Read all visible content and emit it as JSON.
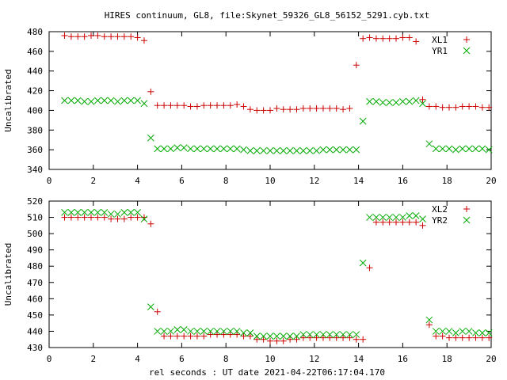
{
  "title": "HIRES continuum, GL8, file:Skynet_59326_GL8_56152_5291.cyb.txt",
  "xlabel": "rel seconds : UT date 2021-04-22T06:17:04.170",
  "chart_data": [
    {
      "type": "scatter",
      "ylabel": "Uncalibrated",
      "xlim": [
        0,
        20
      ],
      "ylim": [
        340,
        480
      ],
      "xticks": [
        0,
        2,
        4,
        6,
        8,
        10,
        12,
        14,
        16,
        18,
        20
      ],
      "yticks": [
        340,
        360,
        380,
        400,
        420,
        440,
        460,
        480
      ],
      "legend_position": "top-right",
      "series": [
        {
          "name": "XL1",
          "marker": "plus",
          "color": "#cc0000",
          "x": [
            0.7,
            1.0,
            1.3,
            1.6,
            1.9,
            2.2,
            2.5,
            2.8,
            3.1,
            3.4,
            3.7,
            4.0,
            4.3,
            4.6,
            4.9,
            5.2,
            5.5,
            5.8,
            6.1,
            6.4,
            6.7,
            7.0,
            7.3,
            7.6,
            7.9,
            8.2,
            8.5,
            8.8,
            9.1,
            9.4,
            9.7,
            10.0,
            10.3,
            10.6,
            10.9,
            11.2,
            11.5,
            11.8,
            12.1,
            12.4,
            12.7,
            13.0,
            13.3,
            13.6,
            13.9,
            14.2,
            14.5,
            14.8,
            15.1,
            15.4,
            15.7,
            16.0,
            16.3,
            16.6,
            16.9,
            17.2,
            17.5,
            17.8,
            18.1,
            18.4,
            18.7,
            19.0,
            19.3,
            19.6,
            19.9
          ],
          "y": [
            476,
            475,
            475,
            475,
            476,
            476,
            475,
            475,
            475,
            475,
            475,
            474,
            471,
            419,
            405,
            405,
            405,
            405,
            405,
            404,
            404,
            405,
            405,
            405,
            405,
            405,
            406,
            404,
            401,
            400,
            400,
            400,
            402,
            401,
            401,
            401,
            402,
            402,
            402,
            402,
            402,
            402,
            401,
            402,
            446,
            473,
            474,
            473,
            473,
            473,
            473,
            474,
            474,
            470,
            411,
            404,
            404,
            403,
            403,
            403,
            404,
            404,
            404,
            403,
            403
          ]
        },
        {
          "name": "YR1",
          "marker": "cross",
          "color": "#00aa00",
          "x": [
            0.7,
            1.0,
            1.3,
            1.6,
            1.9,
            2.2,
            2.5,
            2.8,
            3.1,
            3.4,
            3.7,
            4.0,
            4.3,
            4.6,
            4.9,
            5.2,
            5.5,
            5.8,
            6.1,
            6.4,
            6.7,
            7.0,
            7.3,
            7.6,
            7.9,
            8.2,
            8.5,
            8.8,
            9.1,
            9.4,
            9.7,
            10.0,
            10.3,
            10.6,
            10.9,
            11.2,
            11.5,
            11.8,
            12.1,
            12.4,
            12.7,
            13.0,
            13.3,
            13.6,
            13.9,
            14.2,
            14.5,
            14.8,
            15.1,
            15.4,
            15.7,
            16.0,
            16.3,
            16.6,
            16.9,
            17.2,
            17.5,
            17.8,
            18.1,
            18.4,
            18.7,
            19.0,
            19.3,
            19.6,
            19.9
          ],
          "y": [
            410,
            410,
            410,
            409,
            409,
            410,
            410,
            410,
            409,
            410,
            410,
            410,
            407,
            372,
            361,
            361,
            361,
            362,
            362,
            361,
            361,
            361,
            361,
            361,
            361,
            361,
            361,
            360,
            359,
            359,
            359,
            359,
            359,
            359,
            359,
            359,
            359,
            359,
            359,
            360,
            360,
            360,
            360,
            360,
            360,
            389,
            409,
            409,
            408,
            408,
            408,
            409,
            409,
            410,
            407,
            366,
            361,
            361,
            361,
            360,
            361,
            361,
            361,
            361,
            360
          ]
        }
      ]
    },
    {
      "type": "scatter",
      "ylabel": "Uncalibrated",
      "xlim": [
        0,
        20
      ],
      "ylim": [
        430,
        520
      ],
      "xticks": [
        0,
        2,
        4,
        6,
        8,
        10,
        12,
        14,
        16,
        18,
        20
      ],
      "yticks": [
        430,
        440,
        450,
        460,
        470,
        480,
        490,
        500,
        510,
        520
      ],
      "legend_position": "top-right",
      "series": [
        {
          "name": "XL2",
          "marker": "plus",
          "color": "#cc0000",
          "x": [
            0.7,
            1.0,
            1.3,
            1.6,
            1.9,
            2.2,
            2.5,
            2.8,
            3.1,
            3.4,
            3.7,
            4.0,
            4.3,
            4.6,
            4.9,
            5.2,
            5.5,
            5.8,
            6.1,
            6.4,
            6.7,
            7.0,
            7.3,
            7.6,
            7.9,
            8.2,
            8.5,
            8.8,
            9.1,
            9.4,
            9.7,
            10.0,
            10.3,
            10.6,
            10.9,
            11.2,
            11.5,
            11.8,
            12.1,
            12.4,
            12.7,
            13.0,
            13.3,
            13.6,
            13.9,
            14.2,
            14.5,
            14.8,
            15.1,
            15.4,
            15.7,
            16.0,
            16.3,
            16.6,
            16.9,
            17.2,
            17.5,
            17.8,
            18.1,
            18.4,
            18.7,
            19.0,
            19.3,
            19.6,
            19.9
          ],
          "y": [
            510,
            510,
            510,
            510,
            510,
            510,
            510,
            509,
            509,
            509,
            510,
            510,
            510,
            506,
            452,
            437,
            437,
            437,
            437,
            437,
            437,
            437,
            438,
            438,
            438,
            438,
            438,
            437,
            437,
            435,
            435,
            434,
            434,
            434,
            435,
            435,
            436,
            436,
            436,
            436,
            436,
            436,
            436,
            436,
            435,
            435,
            479,
            507,
            507,
            507,
            507,
            507,
            507,
            507,
            505,
            444,
            437,
            437,
            436,
            436,
            436,
            436,
            436,
            436,
            436
          ]
        },
        {
          "name": "YR2",
          "marker": "cross",
          "color": "#00aa00",
          "x": [
            0.7,
            1.0,
            1.3,
            1.6,
            1.9,
            2.2,
            2.5,
            2.8,
            3.1,
            3.4,
            3.7,
            4.0,
            4.3,
            4.6,
            4.9,
            5.2,
            5.5,
            5.8,
            6.1,
            6.4,
            6.7,
            7.0,
            7.3,
            7.6,
            7.9,
            8.2,
            8.5,
            8.8,
            9.1,
            9.4,
            9.7,
            10.0,
            10.3,
            10.6,
            10.9,
            11.2,
            11.5,
            11.8,
            12.1,
            12.4,
            12.7,
            13.0,
            13.3,
            13.6,
            13.9,
            14.2,
            14.5,
            14.8,
            15.1,
            15.4,
            15.7,
            16.0,
            16.3,
            16.6,
            16.9,
            17.2,
            17.5,
            17.8,
            18.1,
            18.4,
            18.7,
            19.0,
            19.3,
            19.6,
            19.9
          ],
          "y": [
            513,
            513,
            513,
            513,
            513,
            513,
            513,
            512,
            512,
            513,
            513,
            513,
            509,
            455,
            440,
            440,
            440,
            441,
            441,
            440,
            440,
            440,
            440,
            440,
            440,
            440,
            440,
            439,
            439,
            437,
            437,
            437,
            437,
            437,
            437,
            437,
            438,
            438,
            438,
            438,
            438,
            438,
            438,
            438,
            438,
            482,
            510,
            510,
            510,
            510,
            510,
            510,
            511,
            511,
            509,
            447,
            440,
            440,
            440,
            439,
            440,
            440,
            439,
            439,
            439
          ]
        }
      ]
    }
  ]
}
